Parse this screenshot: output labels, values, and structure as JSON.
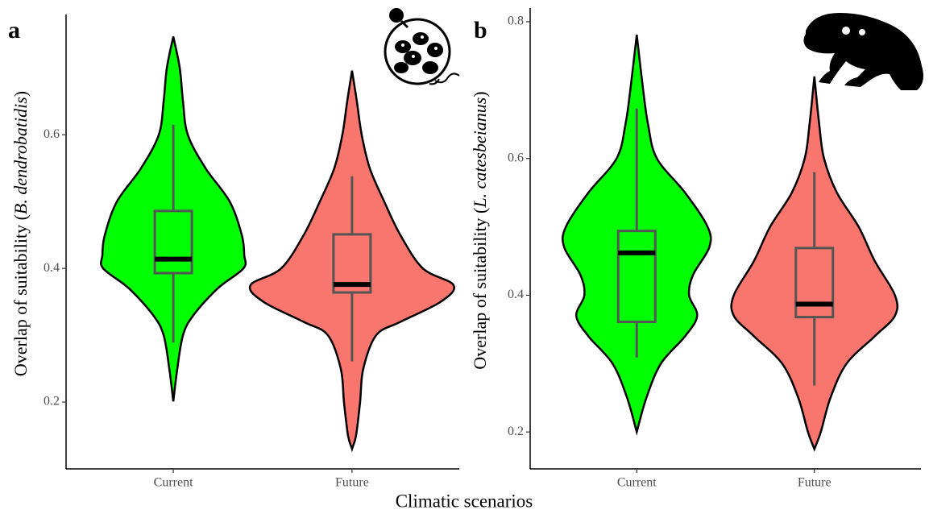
{
  "xlabel": "Climatic scenarios",
  "chart_data": [
    {
      "type": "violin",
      "panel_label": "a",
      "ylabel_parts": [
        {
          "text": "Overlap of suitability ("
        },
        {
          "text": "B. dendrobatidis",
          "italic": true
        },
        {
          "text": ")"
        }
      ],
      "categories": [
        "Current",
        "Future"
      ],
      "ylim": [
        0.1,
        0.78
      ],
      "yticks": [
        0.2,
        0.4,
        0.6
      ],
      "violins": [
        {
          "color": "#00ff00",
          "whisker_low": 0.289,
          "q1": 0.393,
          "median": 0.414,
          "q3": 0.486,
          "whisker_high": 0.615,
          "violin_y": [
            0.747,
            0.7,
            0.65,
            0.6,
            0.55,
            0.5,
            0.45,
            0.42,
            0.4,
            0.37,
            0.33,
            0.3,
            0.25,
            0.201
          ],
          "violin_density": [
            0,
            0.08,
            0.12,
            0.18,
            0.4,
            0.7,
            0.85,
            0.88,
            0.87,
            0.55,
            0.25,
            0.12,
            0.05,
            0
          ]
        },
        {
          "color": "#f8766d",
          "whisker_low": 0.261,
          "q1": 0.364,
          "median": 0.376,
          "q3": 0.451,
          "whisker_high": 0.538,
          "violin_y": [
            0.696,
            0.65,
            0.6,
            0.55,
            0.5,
            0.45,
            0.4,
            0.375,
            0.35,
            0.32,
            0.3,
            0.25,
            0.2,
            0.15,
            0.13
          ],
          "violin_density": [
            0,
            0.06,
            0.12,
            0.22,
            0.4,
            0.6,
            0.88,
            1.26,
            1.1,
            0.6,
            0.3,
            0.14,
            0.1,
            0.05,
            0
          ]
        }
      ]
    },
    {
      "type": "violin",
      "panel_label": "b",
      "ylabel_parts": [
        {
          "text": "Overlap of suitability ("
        },
        {
          "text": "L. catesbeianus",
          "italic": true
        },
        {
          "text": ")"
        }
      ],
      "categories": [
        "Current",
        "Future"
      ],
      "ylim": [
        0.146,
        0.82
      ],
      "yticks": [
        0.2,
        0.4,
        0.6,
        0.8
      ],
      "violins": [
        {
          "color": "#00ff00",
          "whisker_low": 0.309,
          "q1": 0.361,
          "median": 0.462,
          "q3": 0.494,
          "whisker_high": 0.673,
          "violin_y": [
            0.781,
            0.7,
            0.65,
            0.6,
            0.55,
            0.5,
            0.47,
            0.43,
            0.4,
            0.37,
            0.34,
            0.3,
            0.25,
            0.2
          ],
          "violin_density": [
            0,
            0.08,
            0.14,
            0.25,
            0.6,
            0.88,
            0.9,
            0.7,
            0.65,
            0.75,
            0.6,
            0.3,
            0.12,
            0
          ]
        },
        {
          "color": "#f8766d",
          "whisker_low": 0.268,
          "q1": 0.368,
          "median": 0.387,
          "q3": 0.469,
          "whisker_high": 0.58,
          "violin_y": [
            0.72,
            0.65,
            0.6,
            0.55,
            0.5,
            0.45,
            0.4,
            0.37,
            0.34,
            0.3,
            0.25,
            0.2,
            0.175
          ],
          "violin_density": [
            0,
            0.06,
            0.12,
            0.28,
            0.55,
            0.75,
            1.0,
            1.0,
            0.75,
            0.4,
            0.2,
            0.08,
            0
          ]
        }
      ]
    }
  ]
}
